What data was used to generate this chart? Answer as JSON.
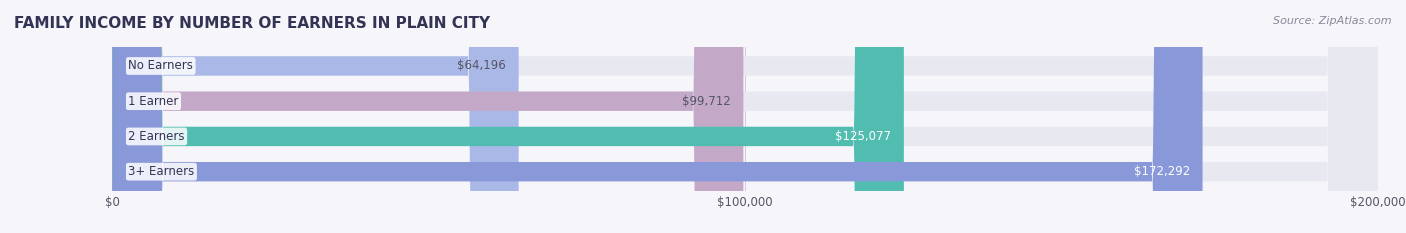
{
  "title": "FAMILY INCOME BY NUMBER OF EARNERS IN PLAIN CITY",
  "source": "Source: ZipAtlas.com",
  "categories": [
    "No Earners",
    "1 Earner",
    "2 Earners",
    "3+ Earners"
  ],
  "values": [
    64196,
    99712,
    125077,
    172292
  ],
  "bar_colors": [
    "#aab8e8",
    "#c4a8c8",
    "#50bdb0",
    "#8898d8"
  ],
  "bar_bg_color": "#e8e8f0",
  "label_colors": [
    "#555566",
    "#555566",
    "#ffffff",
    "#ffffff"
  ],
  "xlim": [
    0,
    200000
  ],
  "xticks": [
    0,
    100000,
    200000
  ],
  "xtick_labels": [
    "$0",
    "$100,000",
    "$200,000"
  ],
  "background_color": "#f5f5fa",
  "title_color": "#333355",
  "title_fontsize": 11,
  "source_fontsize": 8,
  "bar_height": 0.55,
  "value_labels": [
    "$64,196",
    "$99,712",
    "$125,077",
    "$172,292"
  ]
}
